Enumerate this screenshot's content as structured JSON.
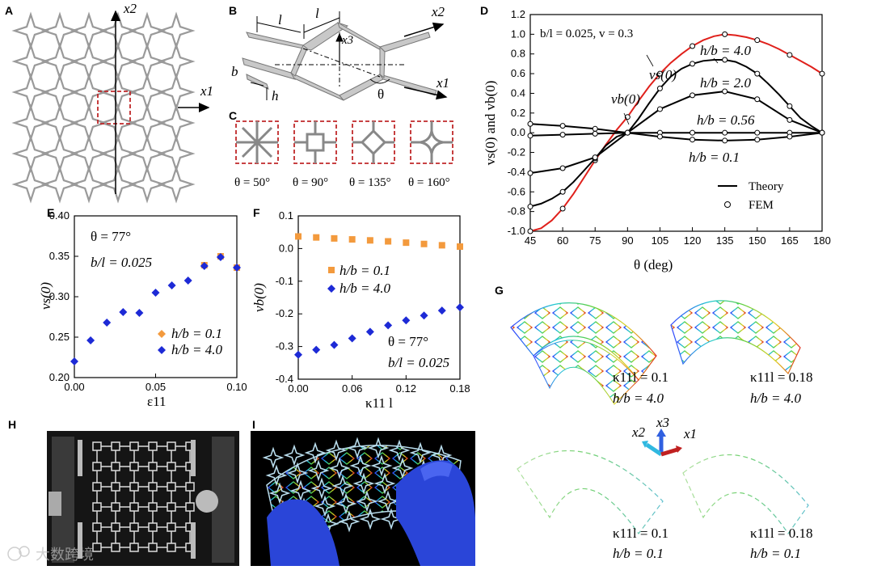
{
  "panels": {
    "A": "A",
    "B": "B",
    "C": "C",
    "D": "D",
    "E": "E",
    "F": "F",
    "G": "G",
    "H": "H",
    "I": "I"
  },
  "panel_a": {
    "x2": "x2",
    "x1": "x1"
  },
  "panel_b": {
    "l1": "l",
    "l2": "l",
    "x3": "x3",
    "x2": "x2",
    "x1": "x1",
    "b": "b",
    "h": "h",
    "theta": "θ"
  },
  "panel_c": {
    "labels": [
      "θ = 50°",
      "θ = 90°",
      "θ = 135°",
      "θ = 160°"
    ]
  },
  "chart_data": [
    {
      "id": "D",
      "type": "line",
      "xlabel": "θ  (deg)",
      "ylabel": "vs(0) and vb(0)",
      "xlim": [
        45,
        180
      ],
      "ylim": [
        -1.0,
        1.2
      ],
      "xticks": [
        "45",
        "60",
        "75",
        "90",
        "105",
        "120",
        "135",
        "150",
        "165",
        "180"
      ],
      "yticks": [
        "-1.0",
        "-0.8",
        "-0.6",
        "-0.4",
        "-0.2",
        "0.0",
        "0.2",
        "0.4",
        "0.6",
        "0.8",
        "1.0",
        "1.2"
      ],
      "annotation": "b/l = 0.025,  v = 0.3",
      "series": [
        {
          "name": "vs(0)",
          "color": "#e0201b",
          "x": [
            45,
            50,
            55,
            60,
            65,
            70,
            75,
            80,
            85,
            90,
            95,
            100,
            105,
            110,
            115,
            120,
            125,
            130,
            135,
            140,
            145,
            150,
            155,
            160,
            165,
            170,
            175,
            180
          ],
          "values": [
            -1.0,
            -0.97,
            -0.89,
            -0.77,
            -0.62,
            -0.45,
            -0.28,
            -0.12,
            0.03,
            0.16,
            0.32,
            0.47,
            0.6,
            0.71,
            0.8,
            0.88,
            0.94,
            0.98,
            1.0,
            0.99,
            0.97,
            0.94,
            0.9,
            0.85,
            0.79,
            0.73,
            0.67,
            0.6
          ]
        },
        {
          "name": "h/b = 4.0",
          "color": "#000000",
          "x": [
            45,
            50,
            55,
            60,
            65,
            70,
            75,
            80,
            85,
            90,
            95,
            100,
            105,
            110,
            115,
            120,
            125,
            130,
            135,
            140,
            145,
            150,
            155,
            160,
            165,
            170,
            175,
            180
          ],
          "values": [
            -0.75,
            -0.72,
            -0.67,
            -0.6,
            -0.5,
            -0.38,
            -0.26,
            -0.13,
            -0.04,
            0.0,
            0.14,
            0.3,
            0.45,
            0.57,
            0.65,
            0.7,
            0.73,
            0.74,
            0.74,
            0.72,
            0.67,
            0.6,
            0.5,
            0.39,
            0.27,
            0.15,
            0.07,
            0.0
          ]
        },
        {
          "name": "h/b = 2.0",
          "color": "#000000",
          "x": [
            45,
            60,
            75,
            90,
            105,
            120,
            135,
            150,
            165,
            180
          ],
          "values": [
            -0.41,
            -0.36,
            -0.25,
            0.0,
            0.24,
            0.38,
            0.42,
            0.34,
            0.13,
            0.0
          ]
        },
        {
          "name": "h/b = 0.56",
          "color": "#000000",
          "x": [
            45,
            60,
            75,
            90,
            105,
            120,
            135,
            150,
            165,
            180
          ],
          "values": [
            -0.03,
            -0.02,
            -0.01,
            0.0,
            0.0,
            0.0,
            0.0,
            0.0,
            0.0,
            0.0
          ]
        },
        {
          "name": "h/b = 0.1",
          "color": "#000000",
          "x": [
            45,
            60,
            75,
            90,
            105,
            120,
            135,
            150,
            165,
            180
          ],
          "values": [
            0.09,
            0.07,
            0.04,
            0.0,
            -0.04,
            -0.07,
            -0.08,
            -0.07,
            -0.04,
            0.0
          ]
        }
      ],
      "labels": {
        "hb40": "h/b = 4.0",
        "hb20": "h/b = 2.0",
        "hb056": "h/b = 0.56",
        "hb01": "h/b = 0.1",
        "vs": "vs(0)",
        "vb": "vb(0)"
      },
      "legend": [
        {
          "label": "Theory",
          "marker": "line"
        },
        {
          "label": "FEM",
          "marker": "circle"
        }
      ]
    },
    {
      "id": "E",
      "type": "scatter",
      "xlabel": "ε11",
      "ylabel": "vs(0)",
      "xlim": [
        0,
        0.1
      ],
      "ylim": [
        0.2,
        0.4
      ],
      "xticks": [
        "0.00",
        "0.05",
        "0.10"
      ],
      "yticks": [
        "0.20",
        "0.25",
        "0.30",
        "0.35",
        "0.40"
      ],
      "annotations": [
        "θ = 77°",
        "b/l = 0.025"
      ],
      "series": [
        {
          "name": "h/b = 0.1",
          "color": "#f39a3d",
          "x": [
            0.08,
            0.09,
            0.1
          ],
          "values": [
            0.339,
            0.35,
            0.336
          ]
        },
        {
          "name": "h/b = 4.0",
          "color": "#1d2ad6",
          "x": [
            0.0,
            0.01,
            0.02,
            0.03,
            0.04,
            0.05,
            0.06,
            0.07,
            0.08,
            0.09,
            0.1
          ],
          "values": [
            0.22,
            0.246,
            0.268,
            0.281,
            0.28,
            0.305,
            0.314,
            0.32,
            0.338,
            0.349,
            0.336
          ]
        }
      ]
    },
    {
      "id": "F",
      "type": "scatter",
      "xlabel": "κ11 l",
      "ylabel": "vb(0)",
      "xlim": [
        0,
        0.18
      ],
      "ylim": [
        -0.4,
        0.1
      ],
      "xticks": [
        "0.00",
        "0.06",
        "0.12",
        "0.18"
      ],
      "yticks": [
        "-0.4",
        "-0.3",
        "-0.2",
        "-0.1",
        "0.0",
        "0.1"
      ],
      "annotations": [
        "θ = 77°",
        "b/l = 0.025"
      ],
      "series": [
        {
          "name": "h/b = 0.1",
          "color": "#f39a3d",
          "x": [
            0.0,
            0.02,
            0.04,
            0.06,
            0.08,
            0.1,
            0.12,
            0.14,
            0.16,
            0.18
          ],
          "values": [
            0.037,
            0.034,
            0.031,
            0.028,
            0.025,
            0.022,
            0.018,
            0.014,
            0.01,
            0.006
          ]
        },
        {
          "name": "h/b = 4.0",
          "color": "#1d2ad6",
          "x": [
            0.0,
            0.02,
            0.04,
            0.06,
            0.08,
            0.1,
            0.12,
            0.14,
            0.16,
            0.18
          ],
          "values": [
            -0.325,
            -0.31,
            -0.295,
            -0.275,
            -0.255,
            -0.235,
            -0.22,
            -0.205,
            -0.19,
            -0.18
          ]
        }
      ]
    }
  ],
  "panel_g": {
    "labels": [
      {
        "k": "κ11l = 0.1",
        "h": "h/b = 4.0"
      },
      {
        "k": "κ11l = 0.18",
        "h": "h/b = 4.0"
      },
      {
        "k": "κ11l = 0.1",
        "h": "h/b = 0.1"
      },
      {
        "k": "κ11l = 0.18",
        "h": "h/b = 0.1"
      }
    ],
    "axes": {
      "x1": "x1",
      "x2": "x2",
      "x3": "x3"
    }
  },
  "watermark": "大数跨境",
  "colors": {
    "red": "#e0201b",
    "blue": "#1d2ad6",
    "orange": "#f39a3d",
    "lattice": "#9a9a9a",
    "dash": "#c0282a"
  }
}
